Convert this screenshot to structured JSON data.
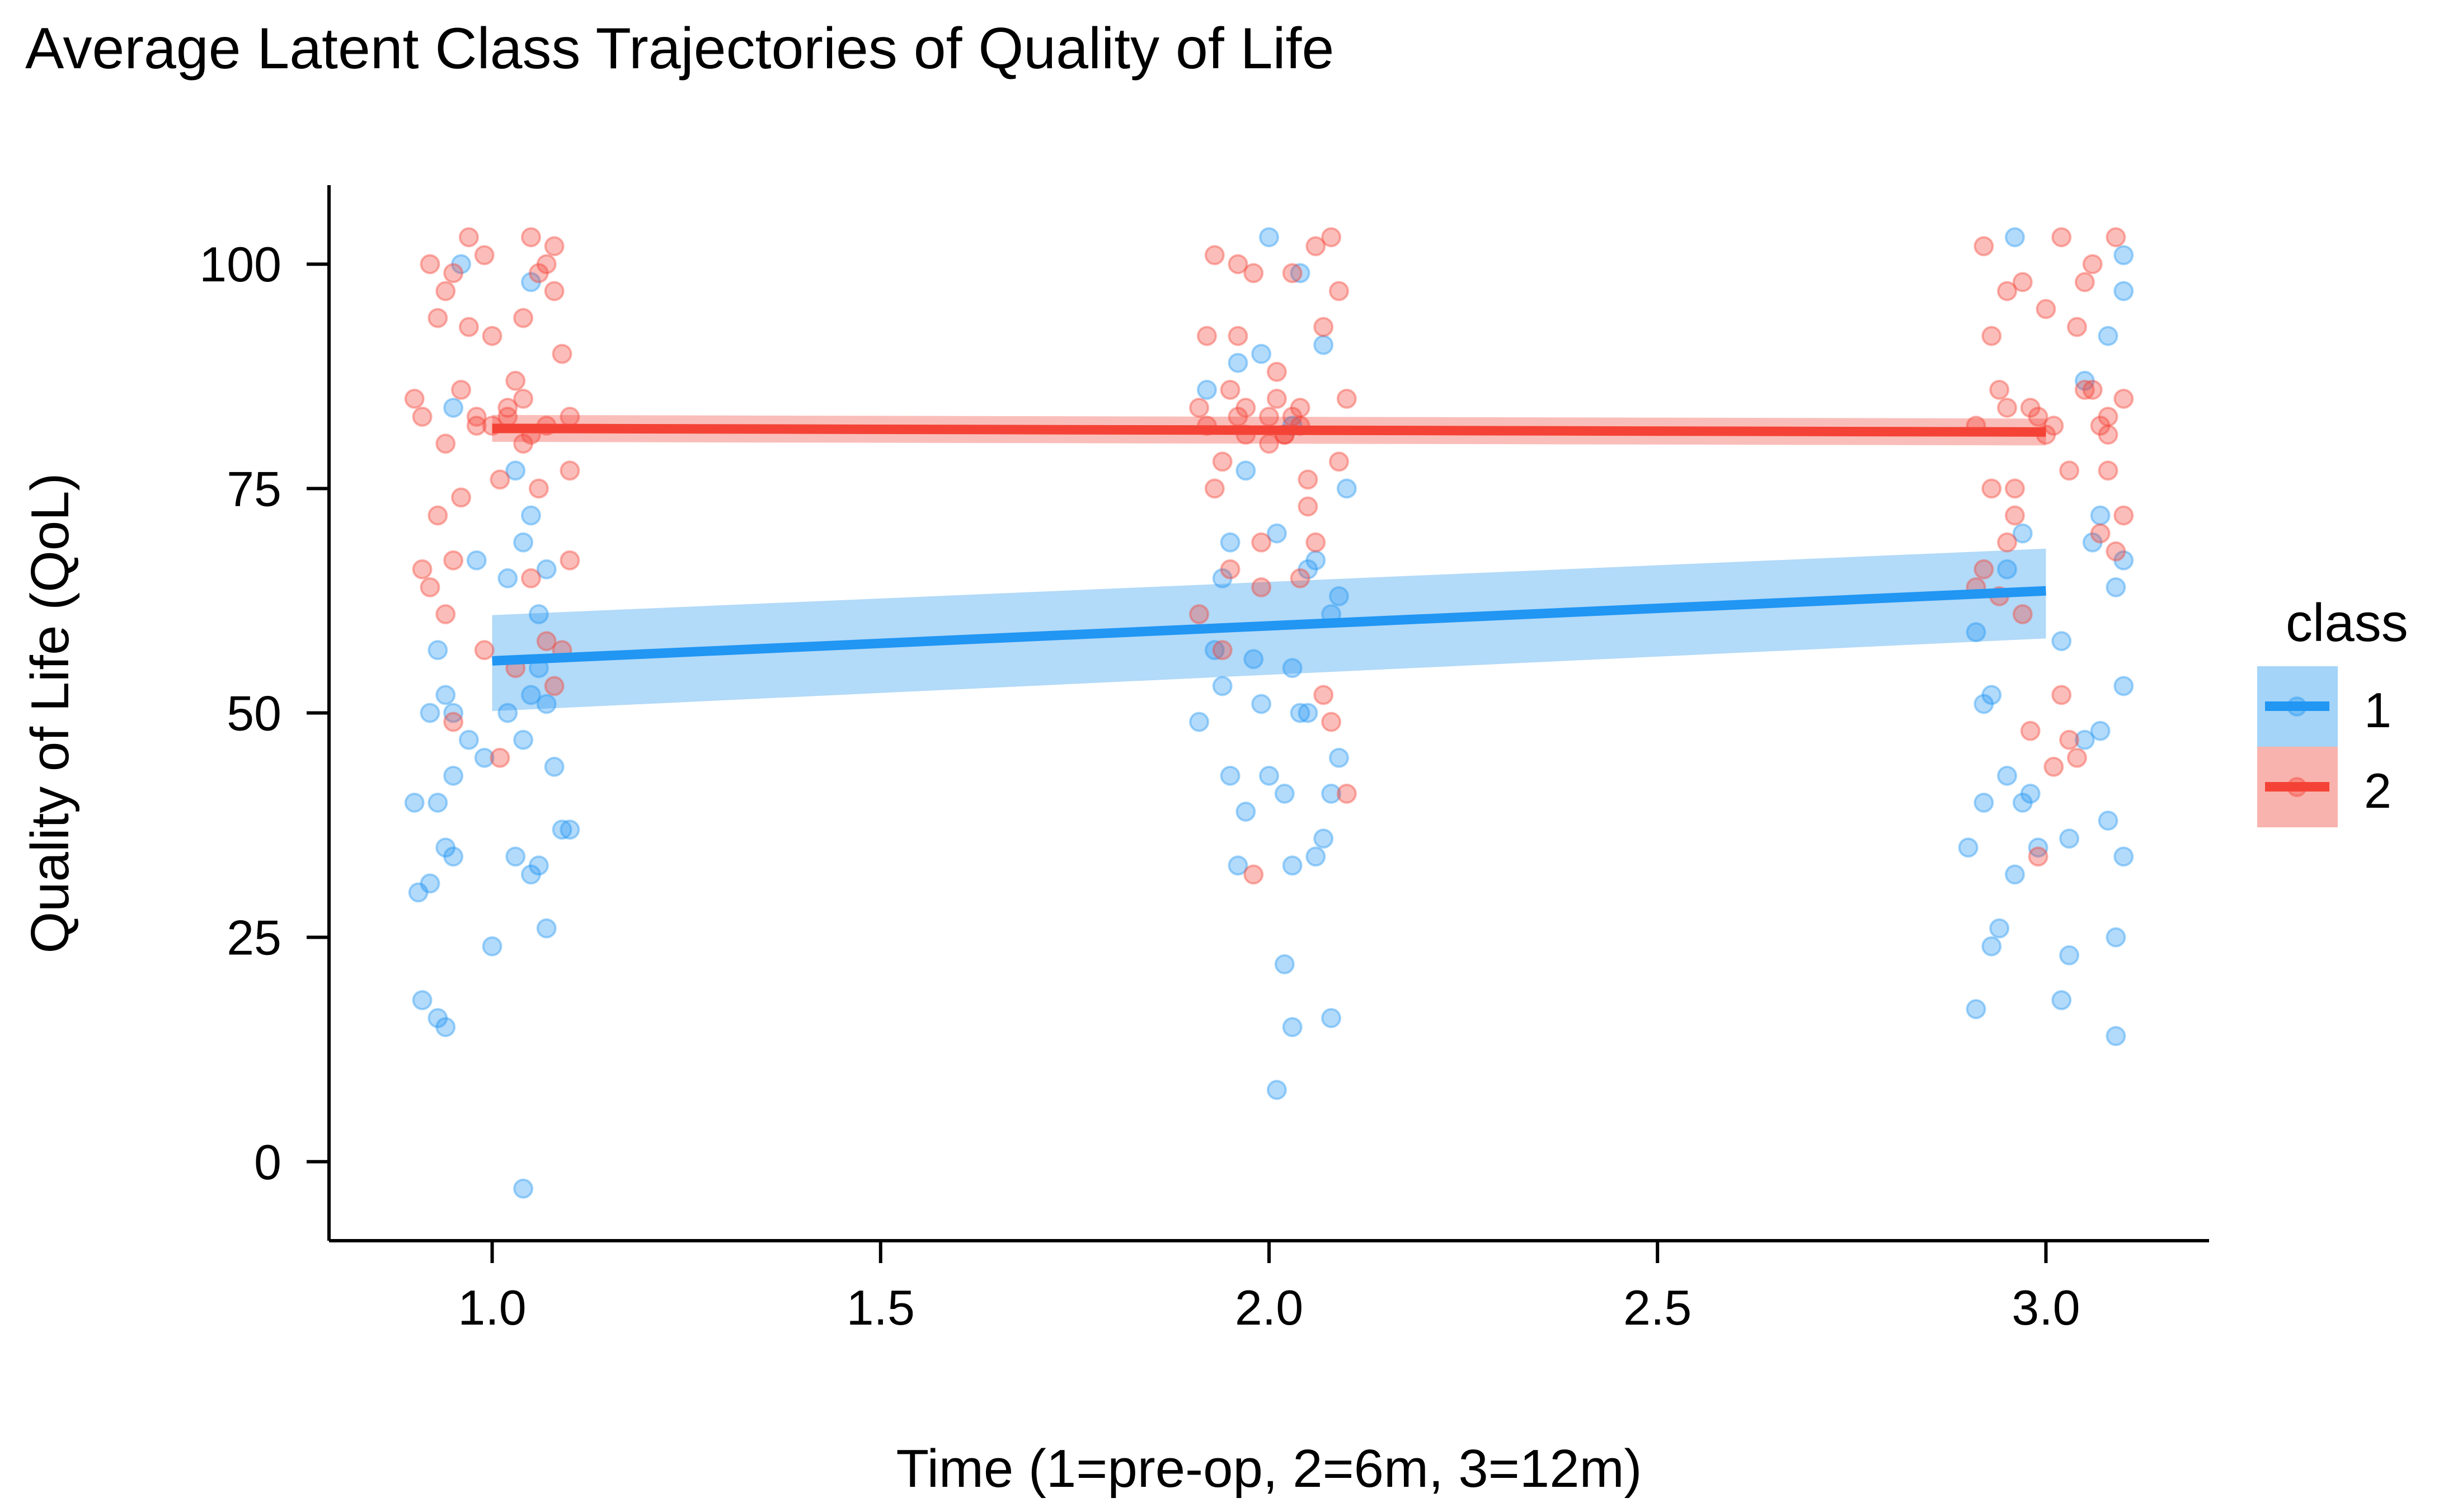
{
  "chart_data": {
    "type": "scatter",
    "title": "Average Latent Class Trajectories of Quality of Life",
    "xlabel": "Time (1=pre-op, 2=6m, 3=12m)",
    "ylabel": "Quality of Life (QoL)",
    "xlim": [
      0.79,
      3.21
    ],
    "ylim": [
      -8.8,
      108.8
    ],
    "xticks": [
      1.0,
      1.5,
      2.0,
      2.5,
      3.0
    ],
    "xtick_labels": [
      "1.0",
      "1.5",
      "2.0",
      "2.5",
      "3.0"
    ],
    "yticks": [
      0,
      25,
      50,
      75,
      100
    ],
    "ytick_labels": [
      "0",
      "25",
      "50",
      "75",
      "100"
    ],
    "grid": false,
    "legend": {
      "title": "class",
      "position": "right",
      "entries": [
        "1",
        "2"
      ]
    },
    "series": [
      {
        "name": "1",
        "color": "#2196F3",
        "band_color": "#A4D4F8",
        "trend": {
          "x": [
            1,
            3
          ],
          "y": [
            55.8,
            63.6
          ],
          "lower": [
            50.2,
            58.3
          ],
          "upper": [
            60.9,
            68.3
          ]
        },
        "points": [
          [
            0.91,
            18
          ],
          [
            0.93,
            16
          ],
          [
            0.94,
            15
          ],
          [
            0.905,
            30
          ],
          [
            0.92,
            31
          ],
          [
            0.94,
            35
          ],
          [
            0.95,
            34
          ],
          [
            0.9,
            40
          ],
          [
            0.93,
            40
          ],
          [
            0.95,
            43
          ],
          [
            0.92,
            50
          ],
          [
            0.94,
            52
          ],
          [
            0.95,
            50
          ],
          [
            0.97,
            47
          ],
          [
            0.99,
            45
          ],
          [
            1.0,
            24
          ],
          [
            1.02,
            50
          ],
          [
            1.03,
            34
          ],
          [
            1.04,
            47
          ],
          [
            1.05,
            32
          ],
          [
            1.06,
            33
          ],
          [
            1.07,
            26
          ],
          [
            1.08,
            44
          ],
          [
            1.09,
            37
          ],
          [
            1.1,
            37
          ],
          [
            1.07,
            51
          ],
          [
            1.06,
            55
          ],
          [
            1.05,
            52
          ],
          [
            1.06,
            61
          ],
          [
            1.02,
            65
          ],
          [
            1.04,
            69
          ],
          [
            1.05,
            72
          ],
          [
            0.98,
            67
          ],
          [
            1.03,
            77
          ],
          [
            1.07,
            66
          ],
          [
            1.04,
            -3
          ],
          [
            0.93,
            57
          ],
          [
            0.95,
            84
          ],
          [
            0.96,
            100
          ],
          [
            1.05,
            98
          ],
          [
            1.91,
            49
          ],
          [
            1.93,
            57
          ],
          [
            1.94,
            53
          ],
          [
            1.95,
            43
          ],
          [
            1.96,
            33
          ],
          [
            1.97,
            39
          ],
          [
            1.98,
            56
          ],
          [
            1.99,
            51
          ],
          [
            2.0,
            43
          ],
          [
            2.01,
            8
          ],
          [
            2.02,
            22
          ],
          [
            2.03,
            15
          ],
          [
            2.03,
            33
          ],
          [
            2.04,
            50
          ],
          [
            2.05,
            50
          ],
          [
            2.06,
            34
          ],
          [
            2.07,
            36
          ],
          [
            2.08,
            41
          ],
          [
            2.09,
            45
          ],
          [
            2.08,
            16
          ],
          [
            2.02,
            41
          ],
          [
            2.03,
            55
          ],
          [
            2.05,
            66
          ],
          [
            2.06,
            67
          ],
          [
            2.08,
            61
          ],
          [
            2.1,
            75
          ],
          [
            1.95,
            69
          ],
          [
            1.97,
            77
          ],
          [
            1.99,
            90
          ],
          [
            2.0,
            103
          ],
          [
            2.04,
            99
          ],
          [
            2.07,
            91
          ],
          [
            1.92,
            86
          ],
          [
            1.96,
            89
          ],
          [
            2.03,
            82
          ],
          [
            2.09,
            63
          ],
          [
            1.94,
            65
          ],
          [
            2.01,
            70
          ],
          [
            2.91,
            17
          ],
          [
            2.92,
            40
          ],
          [
            2.93,
            24
          ],
          [
            2.94,
            26
          ],
          [
            2.95,
            43
          ],
          [
            2.96,
            32
          ],
          [
            2.97,
            40
          ],
          [
            2.98,
            41
          ],
          [
            2.99,
            35
          ],
          [
            3.02,
            18
          ],
          [
            3.03,
            23
          ],
          [
            3.03,
            36
          ],
          [
            3.05,
            47
          ],
          [
            3.07,
            48
          ],
          [
            3.08,
            38
          ],
          [
            3.09,
            14
          ],
          [
            3.09,
            25
          ],
          [
            3.1,
            34
          ],
          [
            3.1,
            53
          ],
          [
            3.02,
            58
          ],
          [
            2.92,
            51
          ],
          [
            2.93,
            52
          ],
          [
            2.91,
            59
          ],
          [
            2.9,
            35
          ],
          [
            3.05,
            87
          ],
          [
            3.08,
            92
          ],
          [
            3.1,
            97
          ],
          [
            2.96,
            103
          ],
          [
            3.1,
            101
          ],
          [
            3.09,
            64
          ],
          [
            3.1,
            67
          ],
          [
            3.06,
            69
          ],
          [
            2.97,
            70
          ],
          [
            2.95,
            66
          ],
          [
            3.07,
            72
          ]
        ]
      },
      {
        "name": "2",
        "color": "#F44336",
        "band_color": "#F9B3AE",
        "trend": {
          "x": [
            1,
            3
          ],
          "y": [
            81.7,
            81.3
          ],
          "lower": [
            80.2,
            79.8
          ],
          "upper": [
            83.2,
            82.8
          ]
        },
        "points": [
          [
            0.9,
            85
          ],
          [
            0.91,
            66
          ],
          [
            0.92,
            100
          ],
          [
            0.93,
            94
          ],
          [
            0.94,
            97
          ],
          [
            0.95,
            99
          ],
          [
            0.96,
            86
          ],
          [
            0.97,
            93
          ],
          [
            0.98,
            82
          ],
          [
            0.99,
            101
          ],
          [
            1.0,
            92
          ],
          [
            1.01,
            76
          ],
          [
            1.02,
            84
          ],
          [
            1.03,
            87
          ],
          [
            1.04,
            94
          ],
          [
            1.05,
            81
          ],
          [
            1.06,
            99
          ],
          [
            1.07,
            100
          ],
          [
            1.08,
            97
          ],
          [
            1.09,
            90
          ],
          [
            1.1,
            83
          ],
          [
            1.1,
            77
          ],
          [
            1.09,
            57
          ],
          [
            1.08,
            53
          ],
          [
            1.07,
            58
          ],
          [
            1.06,
            75
          ],
          [
            1.05,
            65
          ],
          [
            1.04,
            80
          ],
          [
            1.03,
            55
          ],
          [
            1.02,
            83
          ],
          [
            1.01,
            45
          ],
          [
            0.99,
            57
          ],
          [
            0.98,
            83
          ],
          [
            0.96,
            74
          ],
          [
            0.95,
            67
          ],
          [
            0.94,
            61
          ],
          [
            0.93,
            72
          ],
          [
            0.92,
            64
          ],
          [
            0.91,
            83
          ],
          [
            0.95,
            49
          ],
          [
            0.97,
            103
          ],
          [
            1.05,
            103
          ],
          [
            1.08,
            102
          ],
          [
            1.0,
            82
          ],
          [
            1.04,
            85
          ],
          [
            1.07,
            82
          ],
          [
            0.94,
            80
          ],
          [
            1.1,
            67
          ],
          [
            1.91,
            84
          ],
          [
            1.92,
            92
          ],
          [
            1.93,
            101
          ],
          [
            1.94,
            78
          ],
          [
            1.95,
            86
          ],
          [
            1.96,
            100
          ],
          [
            1.97,
            81
          ],
          [
            1.98,
            99
          ],
          [
            1.99,
            69
          ],
          [
            2.0,
            83
          ],
          [
            2.01,
            88
          ],
          [
            2.02,
            81
          ],
          [
            2.03,
            99
          ],
          [
            2.04,
            84
          ],
          [
            2.05,
            76
          ],
          [
            2.06,
            102
          ],
          [
            2.07,
            93
          ],
          [
            2.08,
            103
          ],
          [
            2.09,
            97
          ],
          [
            2.1,
            85
          ],
          [
            2.09,
            78
          ],
          [
            2.08,
            49
          ],
          [
            2.07,
            52
          ],
          [
            2.06,
            69
          ],
          [
            2.05,
            73
          ],
          [
            2.04,
            65
          ],
          [
            2.03,
            83
          ],
          [
            2.02,
            81
          ],
          [
            2.01,
            85
          ],
          [
            1.99,
            64
          ],
          [
            1.98,
            32
          ],
          [
            1.97,
            84
          ],
          [
            1.96,
            92
          ],
          [
            1.95,
            66
          ],
          [
            1.94,
            57
          ],
          [
            1.93,
            75
          ],
          [
            1.92,
            82
          ],
          [
            1.91,
            61
          ],
          [
            2.0,
            80
          ],
          [
            2.04,
            82
          ],
          [
            2.1,
            41
          ],
          [
            1.96,
            83
          ],
          [
            2.91,
            82
          ],
          [
            2.92,
            102
          ],
          [
            2.93,
            92
          ],
          [
            2.94,
            86
          ],
          [
            2.95,
            97
          ],
          [
            2.96,
            75
          ],
          [
            2.97,
            98
          ],
          [
            2.98,
            84
          ],
          [
            2.99,
            83
          ],
          [
            3.0,
            95
          ],
          [
            3.01,
            82
          ],
          [
            3.02,
            103
          ],
          [
            3.03,
            77
          ],
          [
            3.04,
            93
          ],
          [
            3.05,
            86
          ],
          [
            3.06,
            100
          ],
          [
            3.07,
            82
          ],
          [
            3.08,
            81
          ],
          [
            3.09,
            103
          ],
          [
            3.1,
            85
          ],
          [
            3.1,
            72
          ],
          [
            3.09,
            68
          ],
          [
            3.08,
            77
          ],
          [
            3.07,
            70
          ],
          [
            3.06,
            86
          ],
          [
            3.04,
            45
          ],
          [
            3.03,
            47
          ],
          [
            3.02,
            52
          ],
          [
            3.01,
            44
          ],
          [
            2.99,
            34
          ],
          [
            2.98,
            48
          ],
          [
            2.97,
            61
          ],
          [
            2.96,
            72
          ],
          [
            2.95,
            69
          ],
          [
            2.94,
            63
          ],
          [
            2.93,
            75
          ],
          [
            2.92,
            66
          ],
          [
            2.91,
            64
          ],
          [
            3.0,
            81
          ],
          [
            3.05,
            98
          ],
          [
            2.95,
            84
          ],
          [
            3.08,
            83
          ]
        ]
      }
    ]
  }
}
